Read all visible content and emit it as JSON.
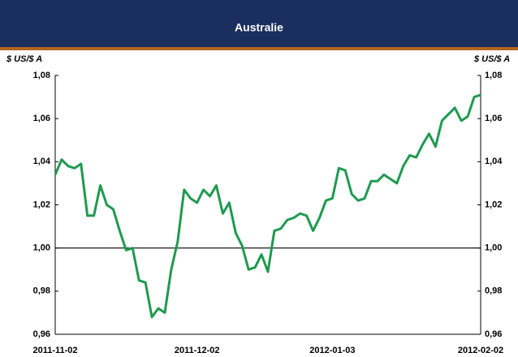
{
  "chart_data": {
    "type": "line",
    "title": "Australie",
    "y_label": "$ US/$ A",
    "y2_label": "$ US/$ A",
    "categories": [
      "2011-11-02",
      null,
      null,
      null,
      null,
      null,
      null,
      null,
      null,
      null,
      null,
      null,
      null,
      null,
      null,
      null,
      null,
      null,
      null,
      null,
      null,
      null,
      "2011-12-02",
      null,
      null,
      null,
      null,
      null,
      null,
      null,
      null,
      null,
      null,
      null,
      null,
      null,
      null,
      null,
      null,
      null,
      null,
      null,
      null,
      "2012-01-03",
      null,
      null,
      null,
      null,
      null,
      null,
      null,
      null,
      null,
      null,
      null,
      null,
      null,
      null,
      null,
      null,
      null,
      null,
      null,
      null,
      null,
      null,
      "2012-02-02"
    ],
    "series": [
      {
        "name": "Australie",
        "color": "#1f9a4f",
        "values": [
          1.034,
          1.041,
          1.038,
          1.037,
          1.039,
          1.015,
          1.015,
          1.029,
          1.02,
          1.018,
          1.008,
          0.999,
          1.0,
          0.985,
          0.984,
          0.968,
          0.972,
          0.97,
          0.99,
          1.003,
          1.027,
          1.023,
          1.021,
          1.027,
          1.024,
          1.029,
          1.016,
          1.021,
          1.007,
          1.001,
          0.99,
          0.991,
          0.997,
          0.989,
          1.008,
          1.009,
          1.013,
          1.014,
          1.016,
          1.015,
          1.008,
          1.014,
          1.022,
          1.023,
          1.037,
          1.036,
          1.025,
          1.022,
          1.023,
          1.031,
          1.031,
          1.034,
          1.032,
          1.03,
          1.038,
          1.043,
          1.042,
          1.048,
          1.053,
          1.047,
          1.059,
          1.062,
          1.065,
          1.059,
          1.061,
          1.07,
          1.071
        ]
      }
    ],
    "ylim": [
      0.96,
      1.08
    ],
    "yticks": [
      {
        "value": 0.96,
        "label": "0,96"
      },
      {
        "value": 0.98,
        "label": "0,98"
      },
      {
        "value": 1.0,
        "label": "1,00"
      },
      {
        "value": 1.02,
        "label": "1,02"
      },
      {
        "value": 1.04,
        "label": "1,04"
      },
      {
        "value": 1.06,
        "label": "1,06"
      },
      {
        "value": 1.08,
        "label": "1,08"
      }
    ],
    "y2lim": [
      0.96,
      1.08
    ],
    "y2ticks": [
      {
        "value": 0.96,
        "label": "0,96"
      },
      {
        "value": 0.98,
        "label": "0,98"
      },
      {
        "value": 1.0,
        "label": "1,00"
      },
      {
        "value": 1.02,
        "label": "1,02"
      },
      {
        "value": 1.04,
        "label": "1,04"
      },
      {
        "value": 1.06,
        "label": "1,06"
      },
      {
        "value": 1.08,
        "label": "1,08"
      }
    ],
    "reference_line": 1.0,
    "grid": false
  }
}
